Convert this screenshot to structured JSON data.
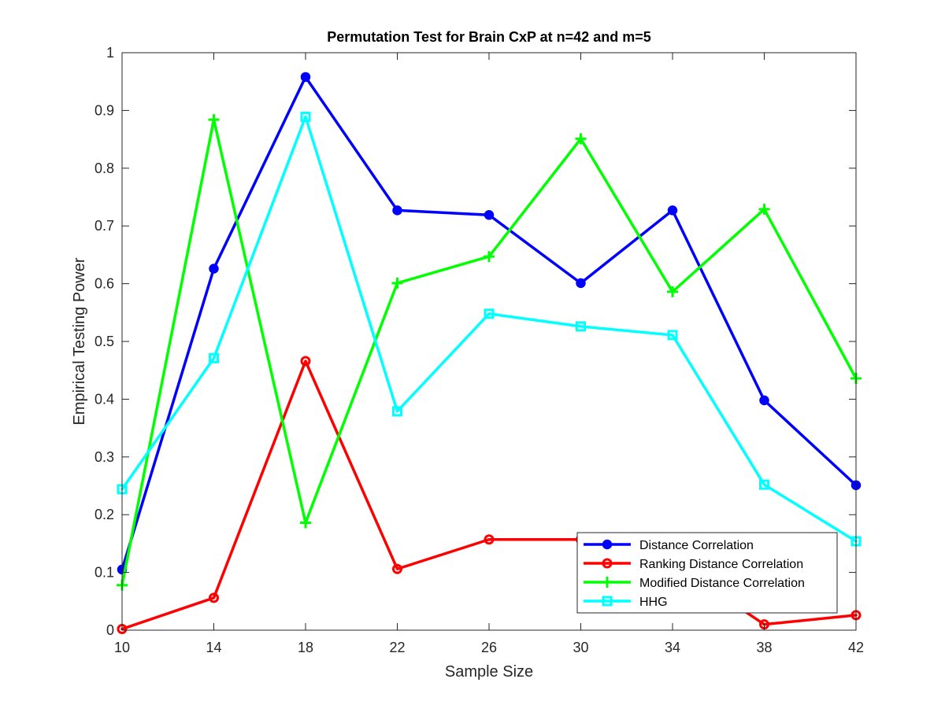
{
  "chart_data": {
    "type": "line",
    "title": "Permutation Test for Brain CxP at n=42 and m=5",
    "xlabel": "Sample Size",
    "ylabel": "Empirical Testing Power",
    "x": [
      10,
      14,
      18,
      22,
      26,
      30,
      34,
      38,
      42
    ],
    "xlim": [
      10,
      42
    ],
    "ylim": [
      0,
      1
    ],
    "xticks": [
      "10",
      "14",
      "18",
      "22",
      "26",
      "30",
      "34",
      "38",
      "42"
    ],
    "yticks": [
      "0",
      "0.1",
      "0.2",
      "0.3",
      "0.4",
      "0.5",
      "0.6",
      "0.7",
      "0.8",
      "0.9",
      "1"
    ],
    "grid": false,
    "legend_position": "bottom-right",
    "series": [
      {
        "name": "Distance Correlation",
        "color": "#0000ff",
        "marker": "filled-circle",
        "values": [
          0.105,
          0.626,
          0.958,
          0.727,
          0.719,
          0.601,
          0.727,
          0.398,
          0.251
        ]
      },
      {
        "name": "Ranking Distance Correlation",
        "color": "#ff0000",
        "marker": "open-circle",
        "values": [
          0.002,
          0.056,
          0.466,
          0.106,
          0.157,
          0.157,
          0.117,
          0.01,
          0.026
        ]
      },
      {
        "name": "Modified Distance Correlation",
        "color": "#00ff00",
        "marker": "plus",
        "values": [
          0.078,
          0.884,
          0.186,
          0.601,
          0.647,
          0.851,
          0.586,
          0.729,
          0.436
        ]
      },
      {
        "name": "HHG",
        "color": "#00ffff",
        "marker": "square",
        "values": [
          0.244,
          0.471,
          0.889,
          0.379,
          0.548,
          0.526,
          0.511,
          0.252,
          0.154
        ]
      }
    ]
  }
}
